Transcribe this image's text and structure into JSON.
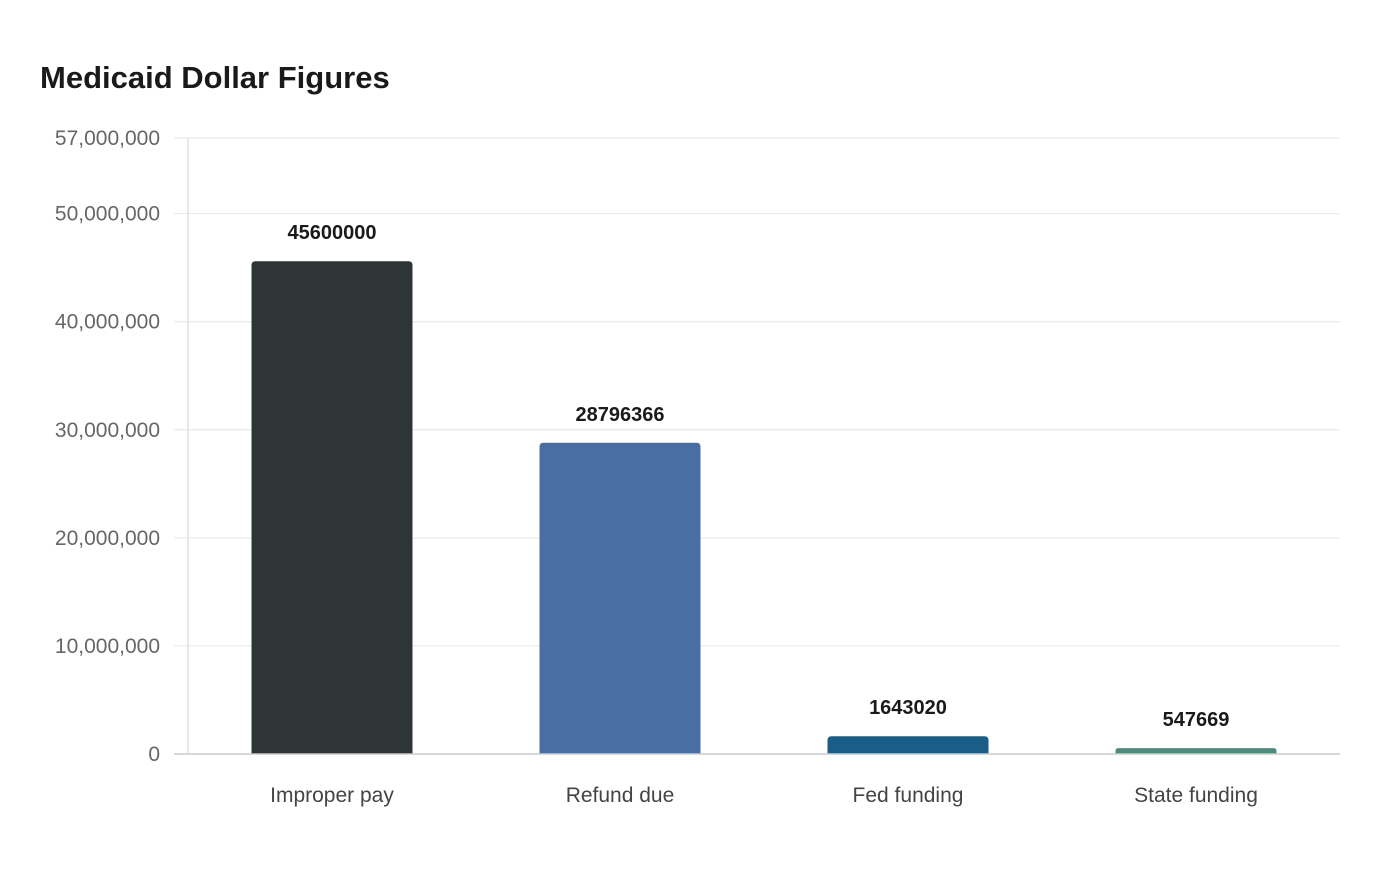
{
  "chart_data": {
    "type": "bar",
    "title": "Medicaid Dollar Figures",
    "xlabel": "",
    "ylabel": "",
    "ylim": [
      0,
      57000000
    ],
    "yticks": [
      0,
      10000000,
      20000000,
      30000000,
      40000000,
      50000000,
      57000000
    ],
    "ytick_labels": [
      "0",
      "10,000,000",
      "20,000,000",
      "30,000,000",
      "40,000,000",
      "50,000,000",
      "57,000,000"
    ],
    "categories": [
      "Improper pay",
      "Refund due",
      "Fed funding",
      "State funding"
    ],
    "values": [
      45600000,
      28796366,
      1643020,
      547669
    ],
    "data_labels": [
      "45600000",
      "28796366",
      "1643020",
      "547669"
    ],
    "colors": [
      "#2d3537",
      "#4a6ea4",
      "#1a5e87",
      "#4f8a7e"
    ],
    "grid": true,
    "legend": "none"
  }
}
